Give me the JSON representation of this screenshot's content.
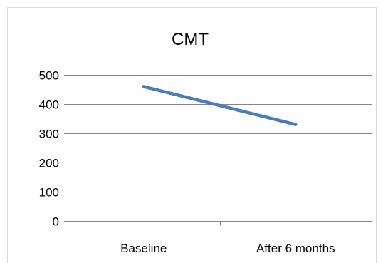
{
  "chart_data": {
    "type": "line",
    "title": "CMT",
    "categories": [
      "Baseline",
      "After 6 months"
    ],
    "series": [
      {
        "values": [
          460,
          330
        ],
        "color": "#4A7EBB"
      }
    ],
    "ylim": [
      0,
      500
    ],
    "yticks": [
      0,
      100,
      200,
      300,
      400,
      500
    ],
    "ytick_labels": [
      "0",
      "100",
      "200",
      "300",
      "400",
      "500"
    ],
    "grid": true,
    "legend": "none"
  }
}
